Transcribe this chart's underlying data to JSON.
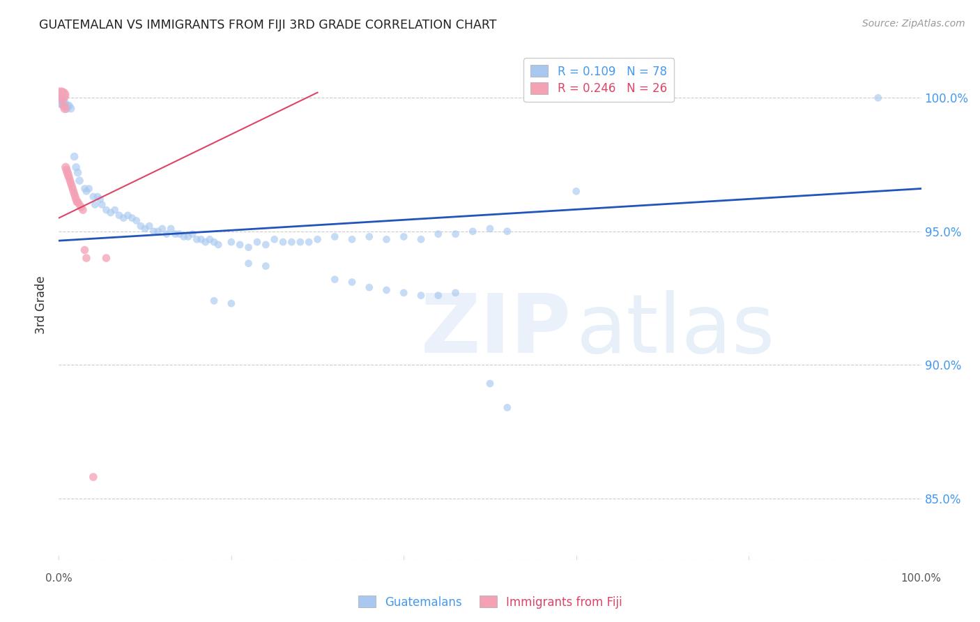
{
  "title": "GUATEMALAN VS IMMIGRANTS FROM FIJI 3RD GRADE CORRELATION CHART",
  "source": "Source: ZipAtlas.com",
  "ylabel": "3rd Grade",
  "ytick_labels": [
    "100.0%",
    "95.0%",
    "90.0%",
    "85.0%"
  ],
  "ytick_values": [
    1.0,
    0.95,
    0.9,
    0.85
  ],
  "xlim": [
    0.0,
    1.0
  ],
  "ylim": [
    0.827,
    1.018
  ],
  "blue_color": "#a8c8f0",
  "pink_color": "#f4a0b5",
  "trendline_blue_color": "#2255bb",
  "trendline_pink_color": "#dd4466",
  "grid_color": "#cccccc",
  "blue_trend_x": [
    0.0,
    1.0
  ],
  "blue_trend_y": [
    0.9465,
    0.966
  ],
  "pink_trend_x": [
    0.0,
    0.3
  ],
  "pink_trend_y": [
    0.955,
    1.002
  ],
  "blue_dots": [
    [
      0.001,
      0.999
    ],
    [
      0.003,
      0.998
    ],
    [
      0.005,
      0.998
    ],
    [
      0.007,
      0.998
    ],
    [
      0.009,
      0.996
    ],
    [
      0.01,
      0.997
    ],
    [
      0.012,
      0.997
    ],
    [
      0.014,
      0.996
    ],
    [
      0.02,
      0.974
    ],
    [
      0.022,
      0.972
    ],
    [
      0.018,
      0.978
    ],
    [
      0.024,
      0.969
    ],
    [
      0.03,
      0.966
    ],
    [
      0.032,
      0.965
    ],
    [
      0.035,
      0.966
    ],
    [
      0.04,
      0.963
    ],
    [
      0.042,
      0.96
    ],
    [
      0.045,
      0.963
    ],
    [
      0.048,
      0.962
    ],
    [
      0.05,
      0.96
    ],
    [
      0.055,
      0.958
    ],
    [
      0.06,
      0.957
    ],
    [
      0.065,
      0.958
    ],
    [
      0.07,
      0.956
    ],
    [
      0.075,
      0.955
    ],
    [
      0.08,
      0.956
    ],
    [
      0.085,
      0.955
    ],
    [
      0.09,
      0.954
    ],
    [
      0.095,
      0.952
    ],
    [
      0.1,
      0.951
    ],
    [
      0.105,
      0.952
    ],
    [
      0.11,
      0.95
    ],
    [
      0.115,
      0.95
    ],
    [
      0.12,
      0.951
    ],
    [
      0.125,
      0.949
    ],
    [
      0.13,
      0.951
    ],
    [
      0.135,
      0.949
    ],
    [
      0.14,
      0.949
    ],
    [
      0.145,
      0.948
    ],
    [
      0.15,
      0.948
    ],
    [
      0.155,
      0.949
    ],
    [
      0.16,
      0.947
    ],
    [
      0.165,
      0.947
    ],
    [
      0.17,
      0.946
    ],
    [
      0.175,
      0.947
    ],
    [
      0.18,
      0.946
    ],
    [
      0.185,
      0.945
    ],
    [
      0.2,
      0.946
    ],
    [
      0.21,
      0.945
    ],
    [
      0.22,
      0.944
    ],
    [
      0.23,
      0.946
    ],
    [
      0.24,
      0.945
    ],
    [
      0.25,
      0.947
    ],
    [
      0.26,
      0.946
    ],
    [
      0.27,
      0.946
    ],
    [
      0.28,
      0.946
    ],
    [
      0.29,
      0.946
    ],
    [
      0.3,
      0.947
    ],
    [
      0.32,
      0.948
    ],
    [
      0.34,
      0.947
    ],
    [
      0.36,
      0.948
    ],
    [
      0.38,
      0.947
    ],
    [
      0.4,
      0.948
    ],
    [
      0.42,
      0.947
    ],
    [
      0.44,
      0.949
    ],
    [
      0.46,
      0.949
    ],
    [
      0.48,
      0.95
    ],
    [
      0.5,
      0.951
    ],
    [
      0.52,
      0.95
    ],
    [
      0.32,
      0.932
    ],
    [
      0.34,
      0.931
    ],
    [
      0.36,
      0.929
    ],
    [
      0.38,
      0.928
    ],
    [
      0.4,
      0.927
    ],
    [
      0.42,
      0.926
    ],
    [
      0.44,
      0.926
    ],
    [
      0.46,
      0.927
    ],
    [
      0.22,
      0.938
    ],
    [
      0.24,
      0.937
    ],
    [
      0.18,
      0.924
    ],
    [
      0.2,
      0.923
    ],
    [
      0.5,
      0.893
    ],
    [
      0.52,
      0.884
    ],
    [
      0.6,
      0.965
    ],
    [
      0.95,
      1.0
    ]
  ],
  "blue_dot_sizes": [
    220,
    100,
    80,
    80,
    80,
    80,
    70,
    70,
    70,
    70,
    70,
    70,
    60,
    60,
    60,
    60,
    60,
    60,
    60,
    60,
    60,
    60,
    60,
    60,
    60,
    60,
    60,
    60,
    60,
    60,
    60,
    60,
    60,
    60,
    60,
    60,
    60,
    60,
    60,
    60,
    60,
    60,
    60,
    60,
    60,
    60,
    60,
    60,
    60,
    60,
    60,
    60,
    60,
    60,
    60,
    60,
    60,
    60,
    60,
    60,
    60,
    60,
    60,
    60,
    60,
    60,
    60,
    60,
    60,
    60,
    60,
    60,
    60,
    60,
    60,
    60,
    60,
    60,
    60,
    60,
    60,
    60,
    60,
    60,
    60
  ],
  "pink_dots": [
    [
      0.002,
      1.001
    ],
    [
      0.004,
      1.001
    ],
    [
      0.006,
      0.997
    ],
    [
      0.007,
      0.996
    ],
    [
      0.008,
      0.974
    ],
    [
      0.009,
      0.973
    ],
    [
      0.01,
      0.972
    ],
    [
      0.011,
      0.971
    ],
    [
      0.012,
      0.97
    ],
    [
      0.013,
      0.969
    ],
    [
      0.014,
      0.968
    ],
    [
      0.015,
      0.967
    ],
    [
      0.016,
      0.966
    ],
    [
      0.017,
      0.965
    ],
    [
      0.018,
      0.964
    ],
    [
      0.019,
      0.963
    ],
    [
      0.02,
      0.962
    ],
    [
      0.021,
      0.961
    ],
    [
      0.022,
      0.961
    ],
    [
      0.024,
      0.96
    ],
    [
      0.026,
      0.959
    ],
    [
      0.028,
      0.958
    ],
    [
      0.03,
      0.943
    ],
    [
      0.032,
      0.94
    ],
    [
      0.04,
      0.858
    ],
    [
      0.055,
      0.94
    ]
  ],
  "pink_dot_sizes": [
    260,
    220,
    90,
    90,
    80,
    80,
    80,
    80,
    70,
    70,
    70,
    70,
    70,
    70,
    70,
    70,
    70,
    70,
    70,
    70,
    70,
    70,
    70,
    70,
    70,
    70
  ]
}
